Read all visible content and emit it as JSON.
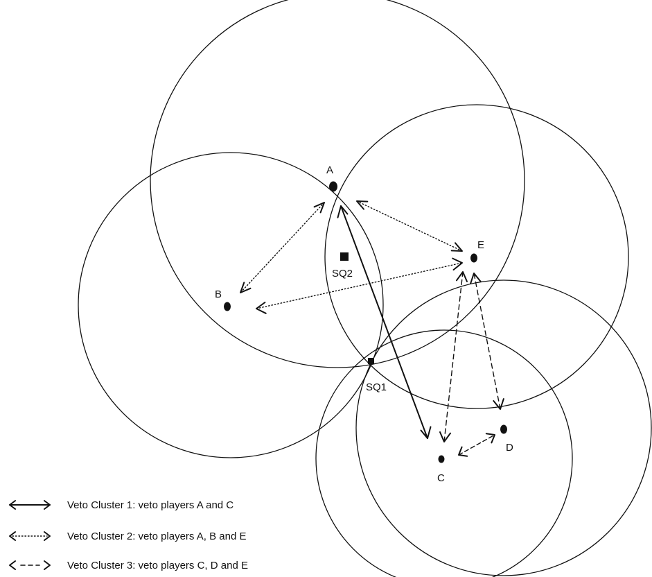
{
  "points": {
    "A": {
      "label": "A"
    },
    "B": {
      "label": "B"
    },
    "C": {
      "label": "C"
    },
    "D": {
      "label": "D"
    },
    "E": {
      "label": "E"
    },
    "SQ1": {
      "label": "SQ1"
    },
    "SQ2": {
      "label": "SQ2"
    }
  },
  "legend": [
    {
      "text": "Veto Cluster 1: veto players A and C",
      "style": "solid"
    },
    {
      "text": "Veto Cluster 2: veto players A, B and E",
      "style": "dotted"
    },
    {
      "text": "Veto Cluster 3: veto players C, D and E",
      "style": "dashed"
    }
  ],
  "colors": {
    "ink": "#111111",
    "background": "#ffffff"
  }
}
